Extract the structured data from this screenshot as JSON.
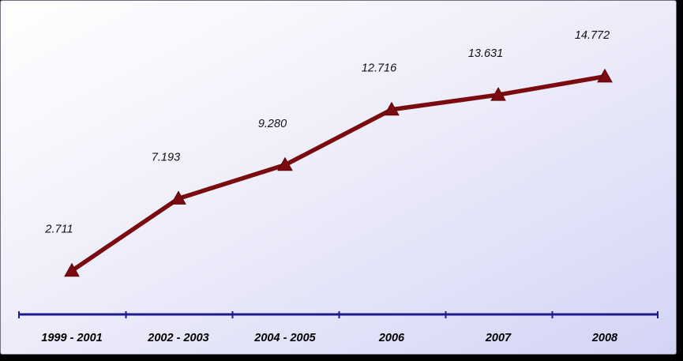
{
  "chart_data": {
    "type": "line",
    "categories": [
      "1999 - 2001",
      "2002 - 2003",
      "2004 - 2005",
      "2006",
      "2007",
      "2008"
    ],
    "values": [
      2.711,
      7.193,
      9.28,
      12.716,
      13.631,
      14.772
    ],
    "data_labels": [
      "2.711",
      "7.193",
      "9.280",
      "12.716",
      "13.631",
      "14.772"
    ],
    "title": "",
    "xlabel": "",
    "ylabel": "",
    "ylim": [
      0,
      18
    ],
    "grid": false,
    "legend": "none",
    "marker": "triangle",
    "colors": {
      "line": "#7a0b0f",
      "axis": "#1c1c8c",
      "background_start": "#ffffff",
      "background_end": "#d4d4f6"
    }
  }
}
